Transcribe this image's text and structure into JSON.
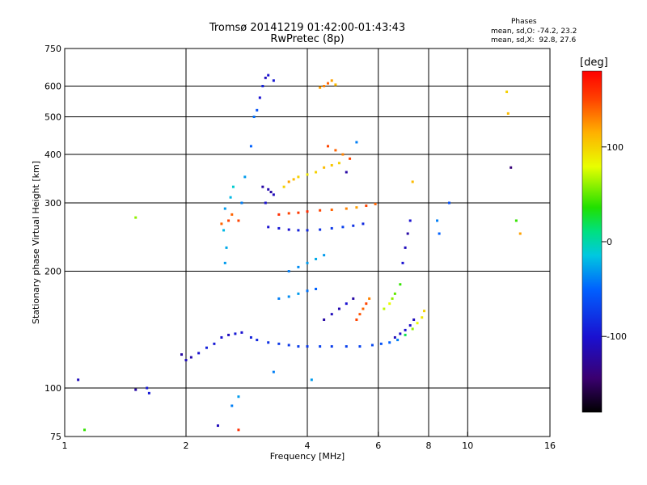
{
  "header": {
    "title_line1": "Tromsø 20141219 01:42:00-01:43:43",
    "title_line2": "RwPretec (8p)",
    "stats_heading": "Phases",
    "stats_o": "mean, sd,O: -74.2, 23.2",
    "stats_x": "mean, sd,X:  92.8, 27.6"
  },
  "chart_data": {
    "type": "scatter",
    "title": "Tromsø 20141219 01:42:00-01:43:43",
    "subtitle": "RwPretec (8p)",
    "xlabel": "Frequency [MHz]",
    "ylabel": "Stationary phase Virtual Height [km]",
    "xscale": "log",
    "yscale": "log",
    "xlim": [
      1,
      16
    ],
    "ylim": [
      75,
      750
    ],
    "xticks": [
      1,
      2,
      4,
      6,
      8,
      10,
      16
    ],
    "xtick_labels": [
      "1",
      "2",
      "4",
      "6",
      "8",
      "10",
      "16"
    ],
    "yticks": [
      75,
      100,
      200,
      300,
      400,
      500,
      600,
      750
    ],
    "ytick_labels": [
      "75",
      "100",
      "200",
      "300",
      "400",
      "500",
      "600",
      "750"
    ],
    "x_gridlines": [
      2,
      4,
      6,
      8,
      10
    ],
    "y_gridlines": [
      100,
      200,
      300,
      400,
      500,
      600
    ],
    "grid": true,
    "colorbar": {
      "label": "[deg]",
      "range": [
        -180,
        180
      ],
      "ticks": [
        100,
        0,
        -100
      ],
      "tick_labels": [
        "100",
        "0",
        "-100"
      ],
      "colormap": "rainbow"
    },
    "points": [
      [
        1.08,
        105,
        -110
      ],
      [
        1.6,
        100,
        -95
      ],
      [
        1.62,
        97,
        -95
      ],
      [
        1.5,
        99,
        -120
      ],
      [
        1.12,
        78,
        40
      ],
      [
        1.95,
        122,
        -120
      ],
      [
        2.0,
        118,
        -110
      ],
      [
        2.06,
        120,
        -115
      ],
      [
        2.15,
        123,
        -100
      ],
      [
        2.25,
        127,
        -90
      ],
      [
        2.35,
        130,
        -95
      ],
      [
        2.45,
        135,
        -100
      ],
      [
        2.55,
        137,
        -110
      ],
      [
        2.65,
        138,
        -95
      ],
      [
        2.75,
        139,
        -100
      ],
      [
        2.9,
        135,
        -90
      ],
      [
        3.0,
        133,
        -85
      ],
      [
        3.2,
        131,
        -80
      ],
      [
        3.4,
        130,
        -75
      ],
      [
        3.6,
        129,
        -75
      ],
      [
        3.8,
        128,
        -72
      ],
      [
        4.0,
        128,
        -75
      ],
      [
        4.3,
        128,
        -70
      ],
      [
        4.6,
        128,
        -72
      ],
      [
        5.0,
        128,
        -70
      ],
      [
        5.4,
        128,
        -68
      ],
      [
        5.8,
        129,
        -65
      ],
      [
        6.1,
        130,
        -60
      ],
      [
        6.4,
        131,
        -50
      ],
      [
        6.7,
        133,
        -40
      ],
      [
        7.0,
        137,
        20
      ],
      [
        7.3,
        142,
        60
      ],
      [
        7.5,
        147,
        80
      ],
      [
        7.7,
        152,
        90
      ],
      [
        7.8,
        158,
        100
      ],
      [
        6.6,
        135,
        -110
      ],
      [
        6.8,
        138,
        -105
      ],
      [
        7.0,
        141,
        -100
      ],
      [
        7.2,
        145,
        -105
      ],
      [
        7.35,
        150,
        -110
      ],
      [
        2.5,
        210,
        -30
      ],
      [
        2.52,
        230,
        -25
      ],
      [
        2.48,
        255,
        -20
      ],
      [
        2.55,
        270,
        150
      ],
      [
        2.6,
        280,
        140
      ],
      [
        2.5,
        290,
        -30
      ],
      [
        2.58,
        310,
        -20
      ],
      [
        2.62,
        330,
        -10
      ],
      [
        2.7,
        270,
        150
      ],
      [
        2.45,
        265,
        140
      ],
      [
        2.75,
        300,
        -40
      ],
      [
        2.8,
        350,
        -30
      ],
      [
        2.9,
        420,
        -50
      ],
      [
        2.95,
        500,
        -45
      ],
      [
        3.0,
        520,
        -60
      ],
      [
        3.05,
        560,
        -100
      ],
      [
        3.1,
        600,
        -90
      ],
      [
        3.15,
        630,
        -110
      ],
      [
        3.2,
        640,
        -100
      ],
      [
        3.3,
        620,
        -95
      ],
      [
        3.1,
        330,
        -120
      ],
      [
        3.2,
        325,
        -115
      ],
      [
        3.25,
        320,
        -120
      ],
      [
        3.3,
        315,
        -110
      ],
      [
        3.15,
        300,
        -100
      ],
      [
        3.5,
        330,
        100
      ],
      [
        3.6,
        340,
        120
      ],
      [
        3.7,
        345,
        110
      ],
      [
        3.8,
        350,
        100
      ],
      [
        4.0,
        355,
        90
      ],
      [
        4.2,
        360,
        100
      ],
      [
        4.4,
        370,
        110
      ],
      [
        4.6,
        375,
        105
      ],
      [
        4.8,
        380,
        100
      ],
      [
        5.0,
        360,
        -120
      ],
      [
        3.2,
        260,
        -100
      ],
      [
        3.4,
        258,
        -95
      ],
      [
        3.6,
        256,
        -100
      ],
      [
        3.8,
        255,
        -90
      ],
      [
        4.0,
        255,
        -85
      ],
      [
        4.3,
        256,
        -80
      ],
      [
        4.6,
        258,
        -75
      ],
      [
        4.9,
        260,
        -70
      ],
      [
        5.2,
        262,
        -80
      ],
      [
        5.5,
        265,
        -85
      ],
      [
        3.4,
        280,
        160
      ],
      [
        3.6,
        282,
        150
      ],
      [
        3.8,
        283,
        155
      ],
      [
        4.0,
        285,
        160
      ],
      [
        4.3,
        287,
        150
      ],
      [
        4.6,
        288,
        140
      ],
      [
        5.0,
        290,
        130
      ],
      [
        5.3,
        292,
        120
      ],
      [
        5.6,
        295,
        150
      ],
      [
        5.9,
        298,
        140
      ],
      [
        4.4,
        600,
        130
      ],
      [
        4.5,
        610,
        140
      ],
      [
        4.6,
        620,
        120
      ],
      [
        4.7,
        605,
        110
      ],
      [
        4.3,
        595,
        120
      ],
      [
        4.5,
        420,
        150
      ],
      [
        4.7,
        410,
        140
      ],
      [
        4.9,
        400,
        130
      ],
      [
        5.1,
        390,
        150
      ],
      [
        5.3,
        430,
        -40
      ],
      [
        3.6,
        200,
        -40
      ],
      [
        3.8,
        205,
        -35
      ],
      [
        4.0,
        210,
        -30
      ],
      [
        4.2,
        215,
        -25
      ],
      [
        4.4,
        220,
        -30
      ],
      [
        3.4,
        170,
        -40
      ],
      [
        3.6,
        172,
        -35
      ],
      [
        3.8,
        175,
        -30
      ],
      [
        4.0,
        178,
        -45
      ],
      [
        4.2,
        180,
        -50
      ],
      [
        4.4,
        150,
        -120
      ],
      [
        4.6,
        155,
        -110
      ],
      [
        4.8,
        160,
        -115
      ],
      [
        5.0,
        165,
        -100
      ],
      [
        5.2,
        170,
        -120
      ],
      [
        5.3,
        150,
        150
      ],
      [
        5.4,
        155,
        145
      ],
      [
        5.5,
        160,
        140
      ],
      [
        5.6,
        165,
        150
      ],
      [
        5.7,
        170,
        130
      ],
      [
        6.2,
        160,
        70
      ],
      [
        6.4,
        165,
        80
      ],
      [
        6.5,
        170,
        60
      ],
      [
        6.6,
        175,
        50
      ],
      [
        6.8,
        185,
        40
      ],
      [
        6.9,
        210,
        -100
      ],
      [
        7.0,
        230,
        -110
      ],
      [
        7.1,
        250,
        -120
      ],
      [
        7.2,
        270,
        -100
      ],
      [
        7.3,
        340,
        110
      ],
      [
        12.5,
        580,
        100
      ],
      [
        12.6,
        510,
        110
      ],
      [
        12.8,
        370,
        -140
      ],
      [
        13.2,
        270,
        40
      ],
      [
        13.5,
        250,
        120
      ],
      [
        8.4,
        270,
        -40
      ],
      [
        8.5,
        250,
        -50
      ],
      [
        9.0,
        300,
        -60
      ],
      [
        1.5,
        275,
        60
      ],
      [
        2.7,
        95,
        -30
      ],
      [
        2.6,
        90,
        -40
      ],
      [
        2.7,
        78,
        160
      ],
      [
        2.4,
        80,
        -110
      ],
      [
        3.3,
        110,
        -40
      ],
      [
        4.1,
        105,
        -30
      ]
    ]
  }
}
